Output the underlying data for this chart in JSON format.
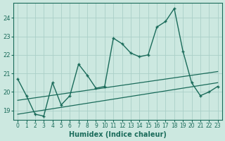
{
  "xlabel": "Humidex (Indice chaleur)",
  "bg_color": "#cce8e0",
  "grid_color": "#aacfc8",
  "line_color": "#1a6b5a",
  "x_values": [
    0,
    1,
    2,
    3,
    4,
    5,
    6,
    7,
    8,
    9,
    10,
    11,
    12,
    13,
    14,
    15,
    16,
    17,
    18,
    19,
    20,
    21,
    22,
    23
  ],
  "y_main": [
    20.7,
    19.8,
    18.8,
    18.7,
    20.5,
    19.3,
    19.8,
    21.5,
    20.9,
    20.2,
    20.3,
    22.9,
    22.6,
    22.1,
    21.9,
    22.0,
    23.5,
    23.8,
    24.5,
    22.2,
    20.5,
    19.8,
    20.0,
    20.3
  ],
  "ylim": [
    18.5,
    24.8
  ],
  "xlim": [
    -0.5,
    23.5
  ],
  "yticks": [
    19,
    20,
    21,
    22,
    23,
    24
  ],
  "xticks": [
    0,
    1,
    2,
    3,
    4,
    5,
    6,
    7,
    8,
    9,
    10,
    11,
    12,
    13,
    14,
    15,
    16,
    17,
    18,
    19,
    20,
    21,
    22,
    23
  ],
  "reg_line1_start_x": 0,
  "reg_line1_start_y": 19.55,
  "reg_line1_end_x": 23,
  "reg_line1_end_y": 21.1,
  "reg_line2_start_x": 0,
  "reg_line2_start_y": 18.8,
  "reg_line2_end_x": 23,
  "reg_line2_end_y": 20.5
}
